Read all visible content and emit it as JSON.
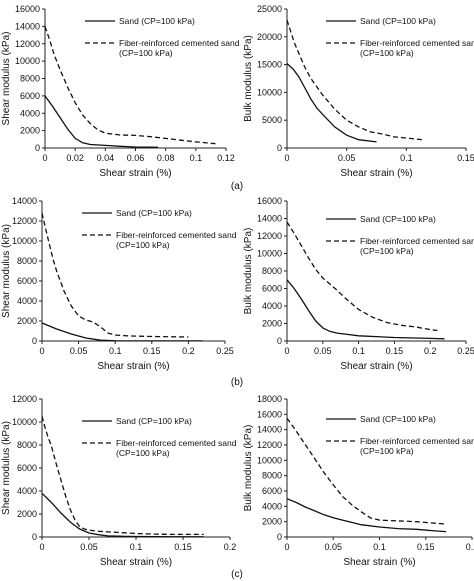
{
  "chart_data": [
    {
      "type": "line",
      "ylabel": "Shear modulus (kPa)",
      "xlabel": "Shear strain (%)",
      "xlim": [
        0,
        0.12
      ],
      "xticks": [
        0,
        0.02,
        0.04,
        0.06,
        0.08,
        0.1,
        0.12
      ],
      "xtick_labels": [
        "0",
        "0.02",
        "0.04",
        "0.06",
        "0.08",
        "0.1",
        "0.12"
      ],
      "ylim": [
        0,
        16000
      ],
      "yticks": [
        0,
        2000,
        4000,
        6000,
        8000,
        10000,
        12000,
        14000,
        16000
      ],
      "legend_placement": "top-right",
      "series": [
        {
          "name": "Sand (CP=100 kPa)",
          "style": "solid",
          "x": [
            0,
            0.005,
            0.01,
            0.015,
            0.02,
            0.025,
            0.03,
            0.04,
            0.05,
            0.06,
            0.075
          ],
          "y": [
            6000,
            4800,
            3500,
            2200,
            1100,
            600,
            400,
            300,
            200,
            120,
            80
          ]
        },
        {
          "name": "Fiber-reinforced cemented sand",
          "name_line2": "(CP=100 kPa)",
          "style": "dashed",
          "x": [
            0,
            0.003,
            0.006,
            0.01,
            0.015,
            0.02,
            0.025,
            0.03,
            0.035,
            0.04,
            0.05,
            0.06,
            0.07,
            0.08,
            0.09,
            0.1,
            0.113
          ],
          "y": [
            14000,
            12500,
            10800,
            9000,
            7000,
            5200,
            3800,
            2800,
            2100,
            1700,
            1500,
            1450,
            1300,
            1100,
            900,
            700,
            500
          ]
        }
      ]
    },
    {
      "type": "line",
      "ylabel": "Bulk modulus (kPa)",
      "xlabel": "Shear strain (%)",
      "xlim": [
        0,
        0.15
      ],
      "xticks": [
        0,
        0.05,
        0.1,
        0.15
      ],
      "xtick_labels": [
        "0",
        "0.05",
        "0.1",
        "0.15"
      ],
      "ylim": [
        0,
        25000
      ],
      "yticks": [
        0,
        5000,
        10000,
        15000,
        20000,
        25000
      ],
      "legend_placement": "top-right",
      "series": [
        {
          "name": "Sand (CP=100 kPa)",
          "style": "solid",
          "x": [
            0,
            0.005,
            0.01,
            0.015,
            0.02,
            0.025,
            0.03,
            0.04,
            0.05,
            0.06,
            0.075
          ],
          "y": [
            15200,
            14200,
            12800,
            10800,
            8800,
            7200,
            6000,
            3800,
            2300,
            1500,
            1100
          ]
        },
        {
          "name": "Fiber-reinforced cemented sand",
          "name_line2": "(CP=100 kPa)",
          "style": "dashed",
          "x": [
            0,
            0.003,
            0.006,
            0.01,
            0.015,
            0.02,
            0.025,
            0.03,
            0.04,
            0.05,
            0.06,
            0.07,
            0.08,
            0.09,
            0.1,
            0.113
          ],
          "y": [
            23000,
            21000,
            19000,
            17000,
            14500,
            12500,
            11000,
            9500,
            7000,
            5000,
            3800,
            2900,
            2500,
            2000,
            1800,
            1500
          ]
        }
      ]
    },
    {
      "type": "line",
      "ylabel": "Shear modulus (kPa)",
      "xlabel": "Shear strain (%)",
      "xlim": [
        0,
        0.25
      ],
      "xticks": [
        0,
        0.05,
        0.1,
        0.15,
        0.2,
        0.25
      ],
      "xtick_labels": [
        "0",
        "0.05",
        "0.1",
        "0.15",
        "0.2",
        "0.25"
      ],
      "ylim": [
        0,
        14000
      ],
      "yticks": [
        0,
        2000,
        4000,
        6000,
        8000,
        10000,
        12000,
        14000
      ],
      "legend_placement": "top-right",
      "series": [
        {
          "name": "Sand (CP=100 kPa)",
          "style": "solid",
          "x": [
            0,
            0.02,
            0.04,
            0.06,
            0.08,
            0.1,
            0.12,
            0.15,
            0.2,
            0.22
          ],
          "y": [
            1800,
            1200,
            700,
            300,
            80,
            20,
            10,
            5,
            5,
            5
          ]
        },
        {
          "name": "Fiber-reinforced cemented sand",
          "name_line2": "(CP=100 kPa)",
          "style": "dashed",
          "x": [
            0,
            0.005,
            0.01,
            0.015,
            0.02,
            0.03,
            0.04,
            0.05,
            0.06,
            0.07,
            0.08,
            0.09,
            0.1,
            0.12,
            0.15,
            0.2
          ],
          "y": [
            12800,
            11200,
            9700,
            8200,
            7000,
            5000,
            3500,
            2500,
            2100,
            1900,
            1400,
            800,
            600,
            500,
            450,
            400
          ]
        }
      ]
    },
    {
      "type": "line",
      "ylabel": "Bulk modulus (kPa)",
      "xlabel": "Shear strain (%)",
      "xlim": [
        0,
        0.25
      ],
      "xticks": [
        0,
        0.05,
        0.1,
        0.15,
        0.2,
        0.25
      ],
      "xtick_labels": [
        "0",
        "0.05",
        "0.1",
        "0.15",
        "0.2",
        "0.25"
      ],
      "ylim": [
        0,
        16000
      ],
      "yticks": [
        0,
        2000,
        4000,
        6000,
        8000,
        10000,
        12000,
        14000,
        16000
      ],
      "legend_placement": "top-right",
      "series": [
        {
          "name": "Sand (CP=100 kPa)",
          "style": "solid",
          "x": [
            0,
            0.01,
            0.02,
            0.03,
            0.04,
            0.05,
            0.06,
            0.07,
            0.08,
            0.1,
            0.15,
            0.2,
            0.22
          ],
          "y": [
            7000,
            6000,
            4800,
            3500,
            2300,
            1500,
            1100,
            900,
            800,
            600,
            400,
            300,
            250
          ]
        },
        {
          "name": "Fiber-reinforced cemented sand",
          "name_line2": "(CP=100 kPa)",
          "style": "dashed",
          "x": [
            0,
            0.01,
            0.02,
            0.03,
            0.04,
            0.05,
            0.06,
            0.07,
            0.08,
            0.09,
            0.1,
            0.12,
            0.14,
            0.16,
            0.18,
            0.2,
            0.21
          ],
          "y": [
            13600,
            12300,
            10900,
            9500,
            8200,
            7200,
            6500,
            5800,
            5000,
            4300,
            3600,
            2700,
            2100,
            1800,
            1600,
            1300,
            1200
          ]
        }
      ]
    },
    {
      "type": "line",
      "ylabel": "Shear modulus (kPa)",
      "xlabel": "Shear strain (%)",
      "xlim": [
        0,
        0.2
      ],
      "xticks": [
        0,
        0.05,
        0.1,
        0.15,
        0.2
      ],
      "xtick_labels": [
        "0",
        "0.05",
        "0.1",
        "0.15",
        "0.2"
      ],
      "ylim": [
        0,
        12000
      ],
      "yticks": [
        0,
        2000,
        4000,
        6000,
        8000,
        10000,
        12000
      ],
      "legend_placement": "top-right",
      "series": [
        {
          "name": "Sand (CP=100 kPa)",
          "style": "solid",
          "x": [
            0,
            0.01,
            0.02,
            0.03,
            0.04,
            0.05,
            0.06,
            0.07,
            0.09,
            0.12,
            0.15,
            0.172
          ],
          "y": [
            3800,
            3000,
            2100,
            1300,
            700,
            350,
            200,
            100,
            50,
            30,
            20,
            20
          ]
        },
        {
          "name": "Fiber-reinforced cemented sand",
          "name_line2": "(CP=100 kPa)",
          "style": "dashed",
          "x": [
            0,
            0.003,
            0.006,
            0.01,
            0.015,
            0.02,
            0.025,
            0.03,
            0.035,
            0.04,
            0.045,
            0.05,
            0.06,
            0.08,
            0.1,
            0.12,
            0.14,
            0.16,
            0.172
          ],
          "y": [
            10500,
            9600,
            8800,
            7900,
            6400,
            5000,
            3600,
            2400,
            1500,
            900,
            700,
            600,
            500,
            400,
            300,
            250,
            230,
            230,
            230
          ]
        }
      ]
    },
    {
      "type": "line",
      "ylabel": "Bulk modulus (kPa)",
      "xlabel": "Shear strain (%)",
      "xlim": [
        0,
        0.2
      ],
      "xticks": [
        0,
        0.05,
        0.1,
        0.15,
        0.2
      ],
      "xtick_labels": [
        "0",
        "0.05",
        "0.1",
        "0.15",
        "0.2"
      ],
      "ylim": [
        0,
        18000
      ],
      "yticks": [
        0,
        2000,
        4000,
        6000,
        8000,
        10000,
        12000,
        14000,
        16000,
        18000
      ],
      "legend_placement": "top-right",
      "series": [
        {
          "name": "Sand (CP=100 kPa)",
          "style": "solid",
          "x": [
            0,
            0.01,
            0.02,
            0.03,
            0.04,
            0.05,
            0.06,
            0.07,
            0.08,
            0.1,
            0.12,
            0.14,
            0.16,
            0.172
          ],
          "y": [
            5000,
            4500,
            3900,
            3400,
            2900,
            2500,
            2200,
            1900,
            1600,
            1300,
            1100,
            1000,
            800,
            700
          ]
        },
        {
          "name": "Fiber-reinforced cemented sand",
          "name_line2": "(CP=100 kPa)",
          "style": "dashed",
          "x": [
            0,
            0.01,
            0.02,
            0.03,
            0.04,
            0.05,
            0.06,
            0.07,
            0.08,
            0.09,
            0.1,
            0.12,
            0.14,
            0.16,
            0.172
          ],
          "y": [
            15500,
            13800,
            12000,
            10200,
            8400,
            6800,
            5300,
            4200,
            3300,
            2500,
            2200,
            2100,
            2000,
            1800,
            1700
          ]
        }
      ]
    }
  ],
  "panel_labels": [
    "(a)",
    "(b)",
    "(c)"
  ]
}
